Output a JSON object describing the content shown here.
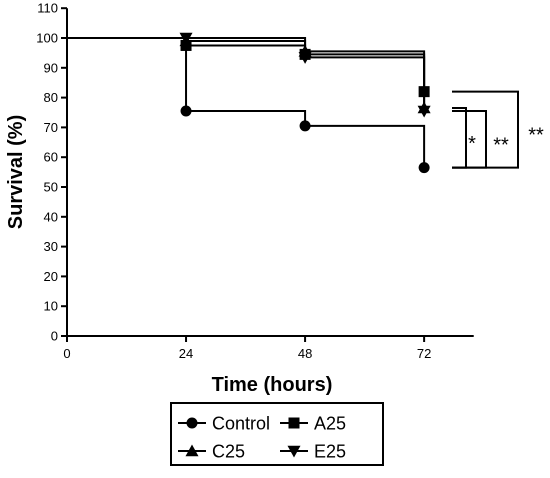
{
  "chart_data": {
    "type": "line",
    "xlabel": "Time (hours)",
    "ylabel": "Survival (%)",
    "xlim": [
      0,
      82
    ],
    "ylim": [
      0,
      110
    ],
    "x_ticks": [
      0,
      24,
      48,
      72
    ],
    "y_ticks": [
      0,
      10,
      20,
      30,
      40,
      50,
      60,
      70,
      80,
      90,
      100,
      110
    ],
    "step": true,
    "legend_position": "bottom",
    "series": [
      {
        "name": "Control",
        "marker": "circle",
        "x": [
          0,
          24,
          48,
          72
        ],
        "y": [
          100,
          75.5,
          70.5,
          56.5
        ]
      },
      {
        "name": "A25",
        "marker": "square",
        "x": [
          0,
          24,
          48,
          72
        ],
        "y": [
          100,
          97.5,
          94.5,
          82
        ]
      },
      {
        "name": "C25",
        "marker": "triangle-up",
        "x": [
          0,
          24,
          48,
          72
        ],
        "y": [
          100,
          99,
          95.5,
          76.5
        ]
      },
      {
        "name": "E25",
        "marker": "triangle-down",
        "x": [
          0,
          24,
          48,
          72
        ],
        "y": [
          100,
          100,
          93.5,
          75.5
        ]
      }
    ],
    "significance": [
      {
        "label": "*",
        "from": "C25",
        "to": "Control"
      },
      {
        "label": "**",
        "from": "E25",
        "to": "Control"
      },
      {
        "label": "**",
        "from": "A25",
        "to": "Control"
      }
    ]
  }
}
